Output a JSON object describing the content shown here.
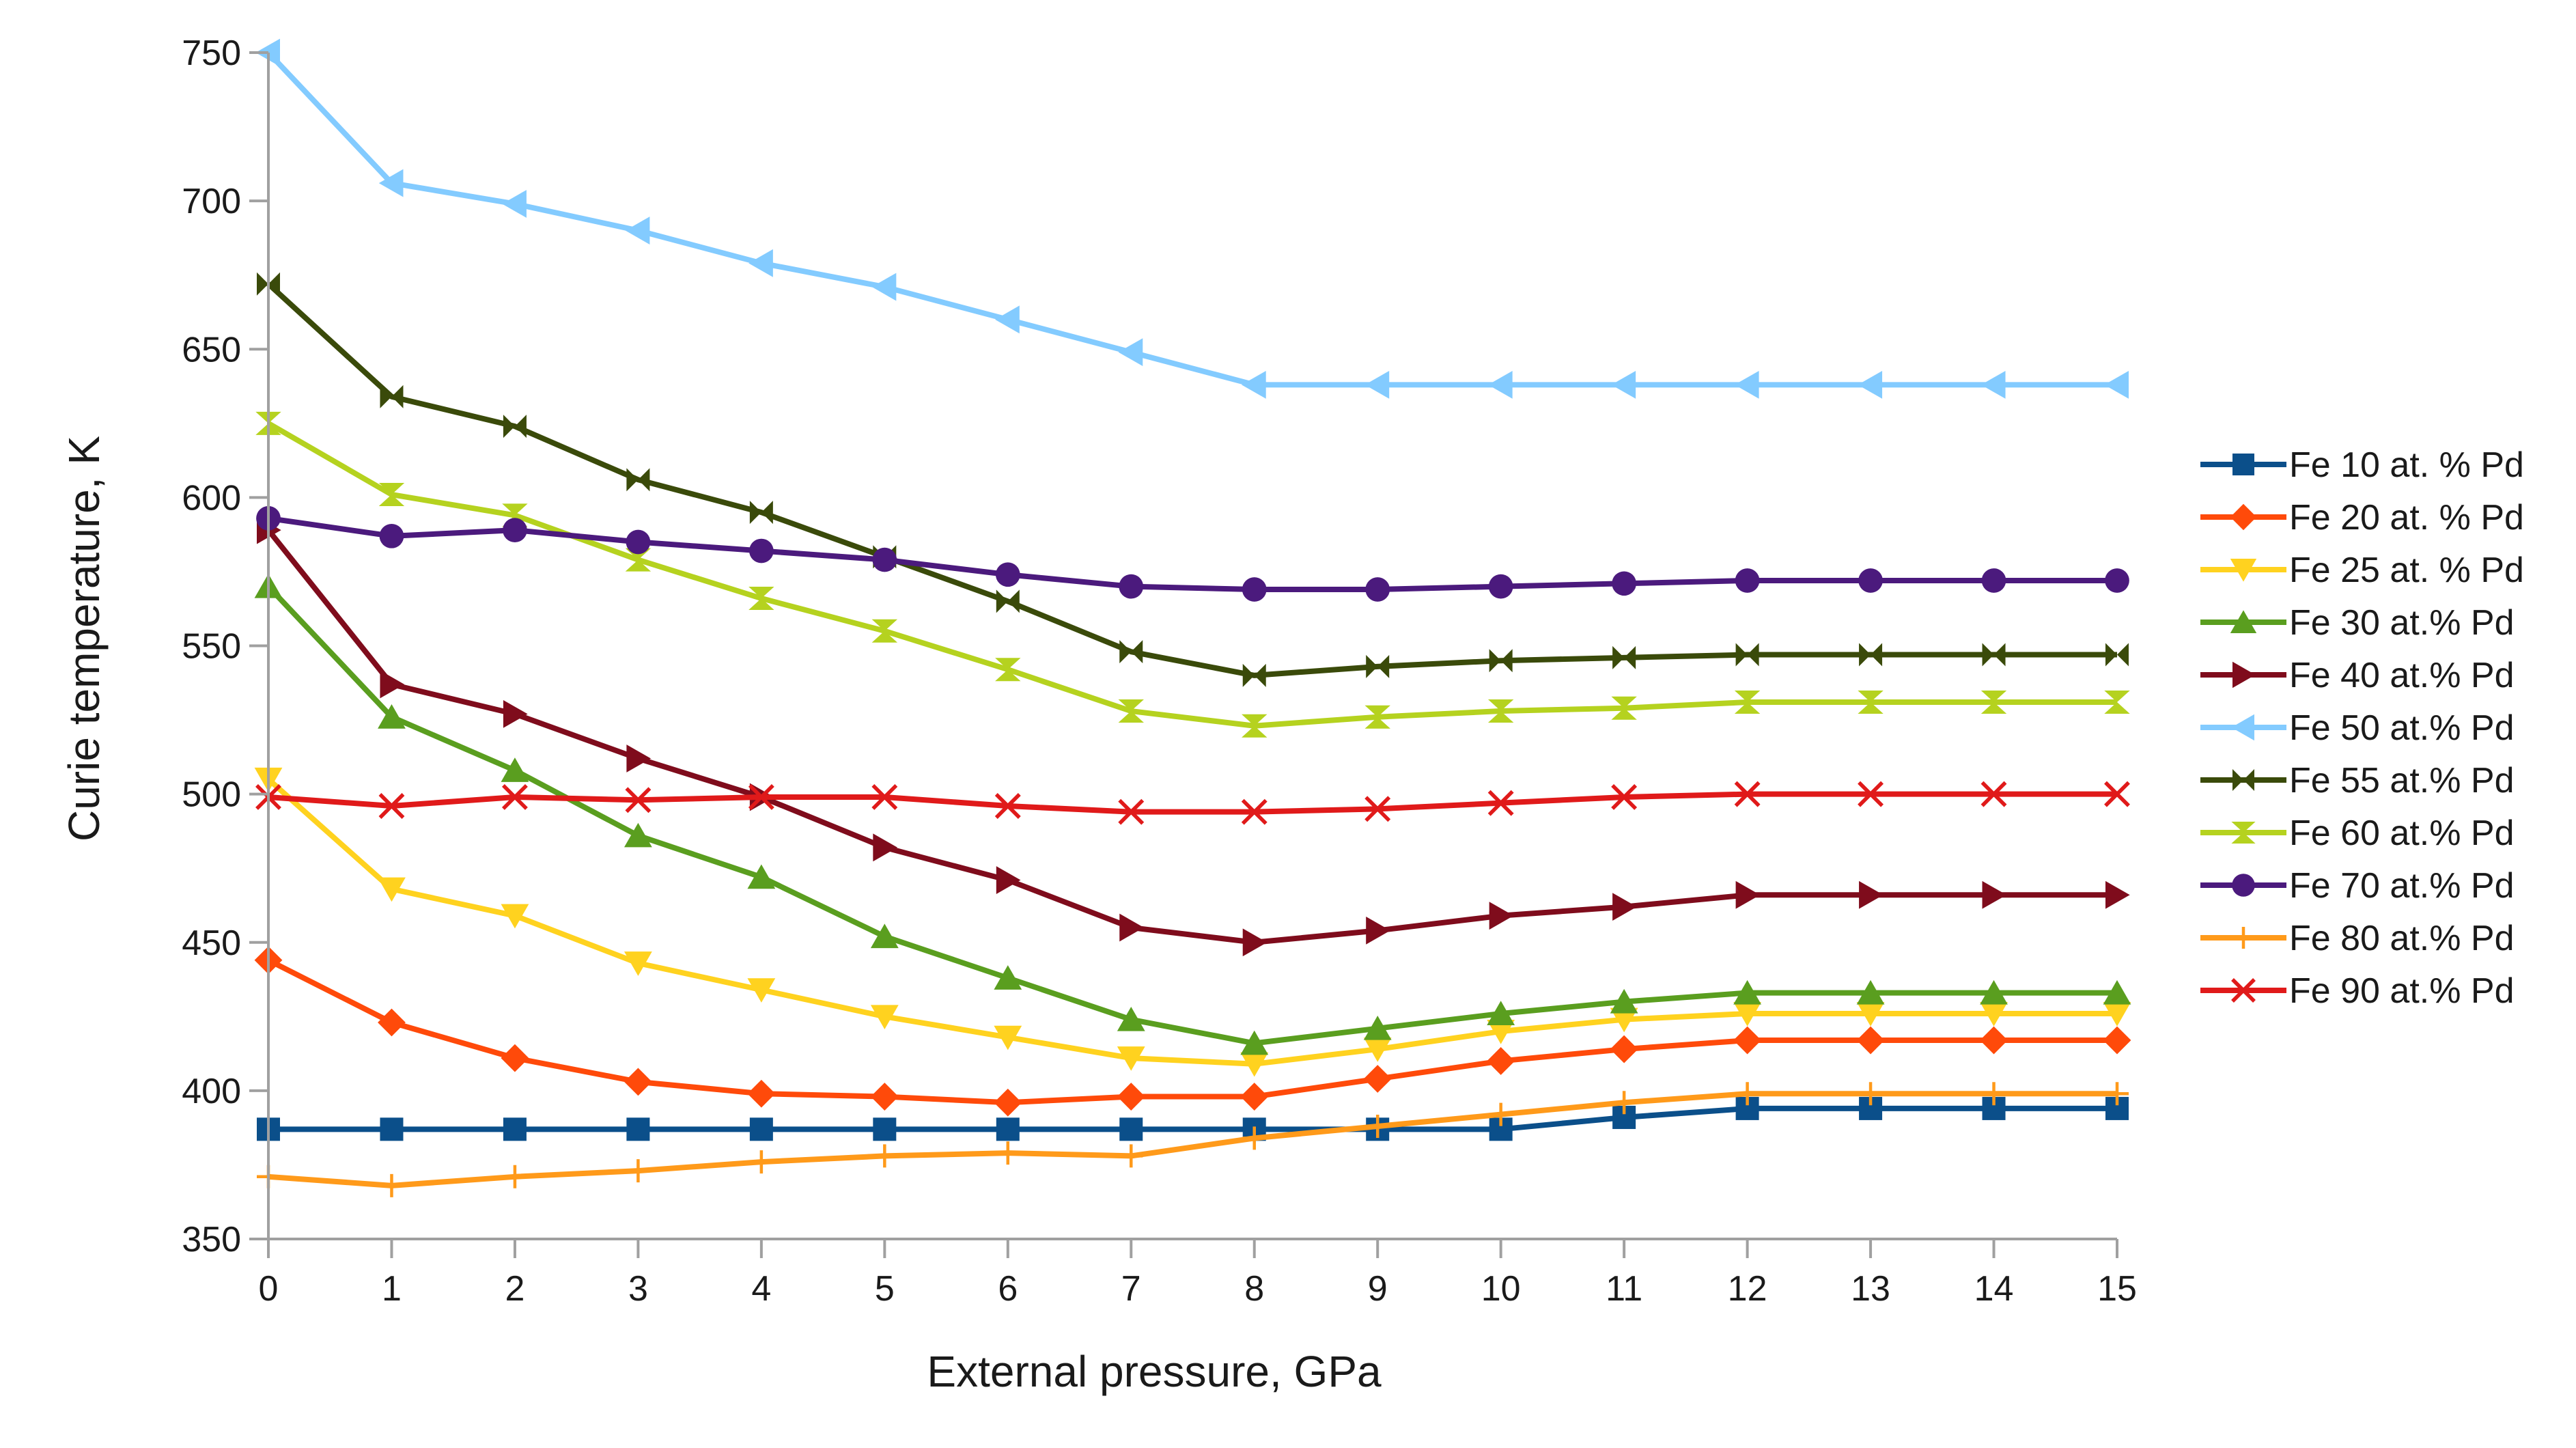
{
  "chart_data": {
    "type": "line",
    "title": "",
    "xlabel": "External pressure, GPa",
    "ylabel": "Curie temperature, K",
    "x": [
      0,
      1,
      2,
      3,
      4,
      5,
      6,
      7,
      8,
      9,
      10,
      11,
      12,
      13,
      14,
      15
    ],
    "xlim": [
      0,
      15
    ],
    "ylim": [
      350,
      750
    ],
    "yticks": [
      350,
      400,
      450,
      500,
      550,
      600,
      650,
      700,
      750
    ],
    "grid": false,
    "legend_position": "right",
    "series": [
      {
        "name": "Fe 10 at. % Pd",
        "color": "#0b4f8a",
        "marker": "square",
        "values": [
          387,
          387,
          387,
          387,
          387,
          387,
          387,
          387,
          387,
          387,
          387,
          391,
          394,
          394,
          394,
          394
        ]
      },
      {
        "name": "Fe 20 at. % Pd",
        "color": "#ff4a0a",
        "marker": "diamond",
        "values": [
          444,
          423,
          411,
          403,
          399,
          398,
          396,
          398,
          398,
          404,
          410,
          414,
          417,
          417,
          417,
          417
        ]
      },
      {
        "name": "Fe 25 at. % Pd",
        "color": "#ffd21f",
        "marker": "triangle-down",
        "values": [
          505,
          468,
          459,
          443,
          434,
          425,
          418,
          411,
          409,
          414,
          420,
          424,
          426,
          426,
          426,
          426
        ]
      },
      {
        "name": "Fe 30 at.% Pd",
        "color": "#5a9e1f",
        "marker": "triangle-up",
        "values": [
          570,
          526,
          508,
          486,
          472,
          452,
          438,
          424,
          416,
          421,
          426,
          430,
          433,
          433,
          433,
          433
        ]
      },
      {
        "name": "Fe 40 at.% Pd",
        "color": "#7f0c1c",
        "marker": "triangle-right",
        "values": [
          589,
          537,
          527,
          512,
          499,
          482,
          471,
          455,
          450,
          454,
          459,
          462,
          466,
          466,
          466,
          466
        ]
      },
      {
        "name": "Fe 50 at.% Pd",
        "color": "#83cbff",
        "marker": "triangle-left",
        "values": [
          750,
          706,
          699,
          690,
          679,
          671,
          660,
          649,
          638,
          638,
          638,
          638,
          638,
          638,
          638,
          638
        ]
      },
      {
        "name": "Fe 55 at.% Pd",
        "color": "#3a4a0a",
        "marker": "bowtie",
        "values": [
          672,
          634,
          624,
          606,
          595,
          580,
          565,
          548,
          540,
          543,
          545,
          546,
          547,
          547,
          547,
          547
        ]
      },
      {
        "name": "Fe 60 at.% Pd",
        "color": "#b5d21f",
        "marker": "hourglass",
        "values": [
          625,
          601,
          594,
          579,
          566,
          555,
          542,
          528,
          523,
          526,
          528,
          529,
          531,
          531,
          531,
          531
        ]
      },
      {
        "name": "Fe 70 at.% Pd",
        "color": "#4b1a7d",
        "marker": "circle",
        "values": [
          593,
          587,
          589,
          585,
          582,
          579,
          574,
          570,
          569,
          569,
          570,
          571,
          572,
          572,
          572,
          572
        ]
      },
      {
        "name": "Fe 80 at.% Pd",
        "color": "#ff9a1a",
        "marker": "plus",
        "values": [
          371,
          368,
          371,
          373,
          376,
          378,
          379,
          378,
          384,
          388,
          392,
          396,
          399,
          399,
          399,
          399
        ]
      },
      {
        "name": "Fe 90 at.% Pd",
        "color": "#e01a1a",
        "marker": "x",
        "values": [
          499,
          496,
          499,
          498,
          499,
          499,
          496,
          494,
          494,
          495,
          497,
          499,
          500,
          500,
          500,
          500
        ]
      }
    ]
  }
}
